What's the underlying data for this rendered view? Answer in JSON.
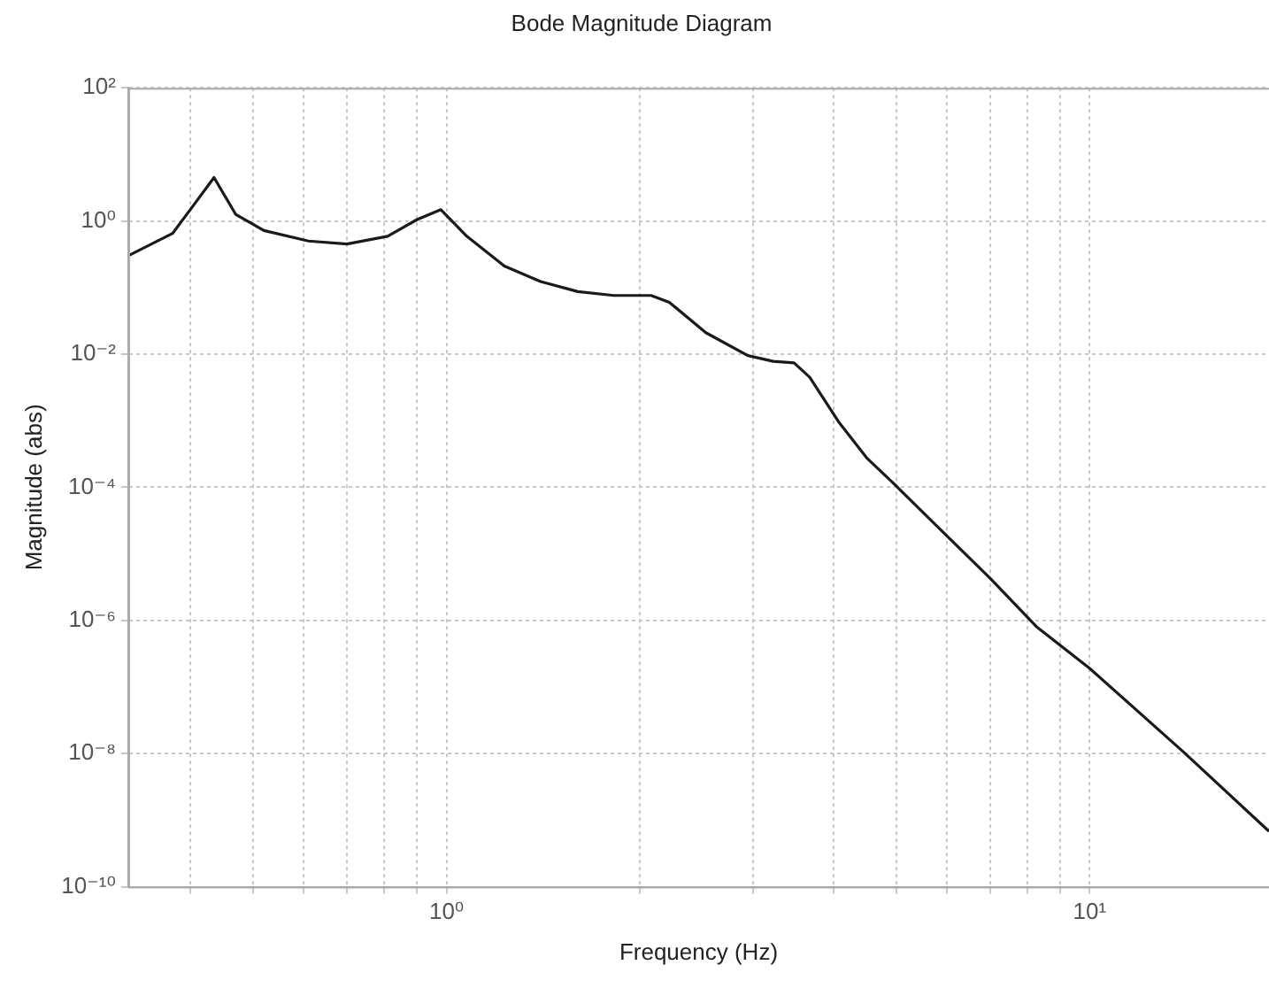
{
  "chart_data": {
    "type": "line",
    "title": "Bode Magnitude Diagram",
    "xlabel": "Frequency (Hz)",
    "ylabel": "Magnitude (abs)",
    "log": "xy",
    "grid": true,
    "legend": false,
    "marker": "none",
    "line_style": "solid",
    "xlim": [
      0.32,
      19
    ],
    "ylim": [
      1e-10,
      100
    ],
    "xticks": [
      {
        "value": 0.4,
        "label": null
      },
      {
        "value": 0.5,
        "label": null
      },
      {
        "value": 0.6,
        "label": null
      },
      {
        "value": 0.7,
        "label": null
      },
      {
        "value": 0.8,
        "label": null
      },
      {
        "value": 0.9,
        "label": null
      },
      {
        "value": 1,
        "label": "10⁰"
      },
      {
        "value": 2,
        "label": null
      },
      {
        "value": 3,
        "label": null
      },
      {
        "value": 4,
        "label": null
      },
      {
        "value": 5,
        "label": null
      },
      {
        "value": 6,
        "label": null
      },
      {
        "value": 7,
        "label": null
      },
      {
        "value": 8,
        "label": null
      },
      {
        "value": 9,
        "label": null
      },
      {
        "value": 10,
        "label": "10¹"
      }
    ],
    "yticks": [
      {
        "value": 1e-10,
        "label": "10⁻¹⁰"
      },
      {
        "value": 1e-08,
        "label": "10⁻⁸"
      },
      {
        "value": 1e-06,
        "label": "10⁻⁶"
      },
      {
        "value": 0.0001,
        "label": "10⁻⁴"
      },
      {
        "value": 0.01,
        "label": "10⁻²"
      },
      {
        "value": 1,
        "label": "10⁰"
      },
      {
        "value": 100,
        "label": "10²"
      }
    ],
    "x": [
      0.32,
      0.375,
      0.4,
      0.435,
      0.47,
      0.52,
      0.61,
      0.7,
      0.81,
      0.9,
      0.98,
      1.075,
      1.23,
      1.4,
      1.6,
      1.82,
      2.08,
      2.22,
      2.53,
      2.94,
      3.22,
      3.47,
      3.67,
      4.08,
      4.51,
      4.99,
      5.95,
      7.0,
      8.26,
      10,
      14,
      19
    ],
    "series": [
      {
        "color": "#1a1a1a",
        "values": [
          0.3,
          0.65,
          1.5,
          4.5,
          1.26,
          0.72,
          0.5,
          0.45,
          0.59,
          1.05,
          1.48,
          0.59,
          0.21,
          0.123,
          0.087,
          0.076,
          0.076,
          0.06,
          0.021,
          0.0095,
          0.0078,
          0.0074,
          0.0045,
          0.00093,
          0.00027,
          0.000107,
          2e-05,
          4.3e-06,
          8.1e-07,
          1.9e-07,
          1.05e-08,
          6.8e-10
        ]
      }
    ]
  }
}
